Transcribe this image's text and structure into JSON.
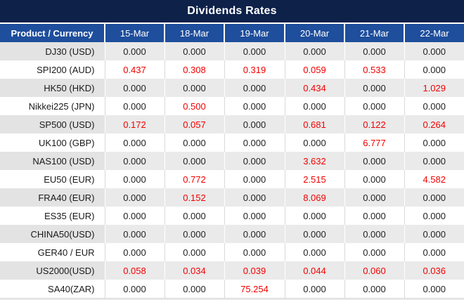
{
  "chart_data": {
    "type": "table",
    "title": "Dividends Rates",
    "columns": [
      "Product / Currency",
      "15-Mar",
      "18-Mar",
      "19-Mar",
      "20-Mar",
      "21-Mar",
      "22-Mar"
    ],
    "rows": [
      {
        "product": "DJ30 (USD)",
        "values": [
          "0.000",
          "0.000",
          "0.000",
          "0.000",
          "0.000",
          "0.000"
        ],
        "red": [
          false,
          false,
          false,
          false,
          false,
          false
        ]
      },
      {
        "product": "SPI200 (AUD)",
        "values": [
          "0.437",
          "0.308",
          "0.319",
          "0.059",
          "0.533",
          "0.000"
        ],
        "red": [
          true,
          true,
          true,
          true,
          true,
          false
        ]
      },
      {
        "product": "HK50 (HKD)",
        "values": [
          "0.000",
          "0.000",
          "0.000",
          "0.434",
          "0.000",
          "1.029"
        ],
        "red": [
          false,
          false,
          false,
          true,
          false,
          true
        ]
      },
      {
        "product": "Nikkei225 (JPN)",
        "values": [
          "0.000",
          "0.500",
          "0.000",
          "0.000",
          "0.000",
          "0.000"
        ],
        "red": [
          false,
          true,
          false,
          false,
          false,
          false
        ]
      },
      {
        "product": "SP500 (USD)",
        "values": [
          "0.172",
          "0.057",
          "0.000",
          "0.681",
          "0.122",
          "0.264"
        ],
        "red": [
          true,
          true,
          false,
          true,
          true,
          true
        ]
      },
      {
        "product": "UK100 (GBP)",
        "values": [
          "0.000",
          "0.000",
          "0.000",
          "0.000",
          "6.777",
          "0.000"
        ],
        "red": [
          false,
          false,
          false,
          false,
          true,
          false
        ]
      },
      {
        "product": "NAS100 (USD)",
        "values": [
          "0.000",
          "0.000",
          "0.000",
          "3.632",
          "0.000",
          "0.000"
        ],
        "red": [
          false,
          false,
          false,
          true,
          false,
          false
        ]
      },
      {
        "product": "EU50 (EUR)",
        "values": [
          "0.000",
          "0.772",
          "0.000",
          "2.515",
          "0.000",
          "4.582"
        ],
        "red": [
          false,
          true,
          false,
          true,
          false,
          true
        ]
      },
      {
        "product": "FRA40 (EUR)",
        "values": [
          "0.000",
          "0.152",
          "0.000",
          "8.069",
          "0.000",
          "0.000"
        ],
        "red": [
          false,
          true,
          false,
          true,
          false,
          false
        ]
      },
      {
        "product": "ES35 (EUR)",
        "values": [
          "0.000",
          "0.000",
          "0.000",
          "0.000",
          "0.000",
          "0.000"
        ],
        "red": [
          false,
          false,
          false,
          false,
          false,
          false
        ]
      },
      {
        "product": "CHINA50(USD)",
        "values": [
          "0.000",
          "0.000",
          "0.000",
          "0.000",
          "0.000",
          "0.000"
        ],
        "red": [
          false,
          false,
          false,
          false,
          false,
          false
        ]
      },
      {
        "product": "GER40 / EUR",
        "values": [
          "0.000",
          "0.000",
          "0.000",
          "0.000",
          "0.000",
          "0.000"
        ],
        "red": [
          false,
          false,
          false,
          false,
          false,
          false
        ]
      },
      {
        "product": "US2000(USD)",
        "values": [
          "0.058",
          "0.034",
          "0.039",
          "0.044",
          "0.060",
          "0.036"
        ],
        "red": [
          true,
          true,
          true,
          true,
          true,
          true
        ]
      },
      {
        "product": "SA40(ZAR)",
        "values": [
          "0.000",
          "0.000",
          "75.254",
          "0.000",
          "0.000",
          "0.000"
        ],
        "red": [
          false,
          false,
          true,
          false,
          false,
          false
        ]
      }
    ],
    "layout": {
      "legend": "none",
      "grid": "cell-borders",
      "highlight_rule": "non-zero values shown in red"
    },
    "colors": {
      "title_bar_bg": "#0d2149",
      "header_bg": "#1e4e9c",
      "header_text": "#ffffff",
      "row_alt_bg": "#eaeaea",
      "row_bg": "#ffffff",
      "value_text": "#222222",
      "highlight_red": "#f30000"
    }
  }
}
